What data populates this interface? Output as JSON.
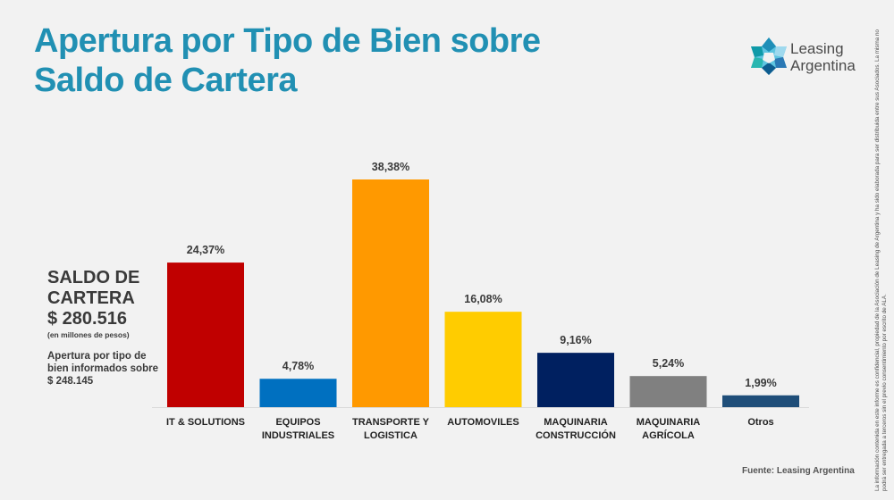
{
  "header": {
    "title_lines": [
      "Apertura por Tipo de Bien sobre",
      "Saldo de Cartera"
    ]
  },
  "logo": {
    "icon": "leasing-argentina-star-logo",
    "lines": [
      "Leasing",
      "Argentina"
    ]
  },
  "summary": {
    "heading_lines": [
      "SALDO DE",
      "CARTERA",
      "$ 280.516"
    ],
    "unit_note": "(en millones de pesos)",
    "sub_lines": [
      "Apertura por tipo de",
      "bien informados sobre",
      "$ 248.145"
    ]
  },
  "chart_data": {
    "type": "bar",
    "title": "Apertura por Tipo de Bien sobre Saldo de Cartera",
    "xlabel": "",
    "ylabel": "",
    "ylim": [
      0,
      40
    ],
    "grid": false,
    "legend": "none",
    "categories": [
      [
        "IT & SOLUTIONS"
      ],
      [
        "EQUIPOS",
        "INDUSTRIALES"
      ],
      [
        "TRANSPORTE Y",
        "LOGISTICA"
      ],
      [
        "AUTOMOVILES"
      ],
      [
        "MAQUINARIA",
        "CONSTRUCCIÓN"
      ],
      [
        "MAQUINARIA",
        "AGRÍCOLA"
      ],
      [
        "Otros"
      ]
    ],
    "values": [
      24.37,
      4.78,
      38.38,
      16.08,
      9.16,
      5.24,
      1.99
    ],
    "data_labels": [
      "24,37%",
      "4,78%",
      "38,38%",
      "16,08%",
      "9,16%",
      "5,24%",
      "1,99%"
    ],
    "colors": [
      "#c00000",
      "#0070c0",
      "#ff9900",
      "#ffcc00",
      "#002060",
      "#808080",
      "#1f4e79"
    ]
  },
  "footer": {
    "source": "Fuente: Leasing Argentina",
    "disclaimer_lines": [
      "La información contenida en este informe es confidencial, propiedad de la Asociación de Leasing de Argentina y ha sido elaborada para ser distribuida entre sus Asociados. La misma no",
      "podrá ser entregada a terceros sin el previo consentimiento por escrito de ALA."
    ]
  },
  "colors": {
    "title": "#2190b3",
    "background": "#f2f2f2",
    "text": "#3a3a3a"
  }
}
